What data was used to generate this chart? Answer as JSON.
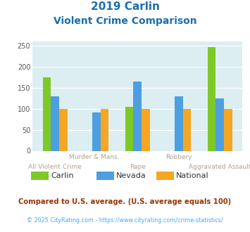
{
  "title_line1": "2019 Carlin",
  "title_line2": "Violent Crime Comparison",
  "categories": [
    "All Violent Crime",
    "Murder & Mans...",
    "Rape",
    "Robbery",
    "Aggravated Assault"
  ],
  "cat_labels_top": [
    "",
    "Murder & Mans...",
    "",
    "Robbery",
    ""
  ],
  "cat_labels_bottom": [
    "All Violent Crime",
    "",
    "Rape",
    "",
    "Aggravated Assault"
  ],
  "series": {
    "Carlin": [
      175,
      0,
      105,
      0,
      248
    ],
    "Nevada": [
      130,
      92,
      165,
      130,
      125
    ],
    "National": [
      100,
      100,
      100,
      100,
      100
    ]
  },
  "colors": {
    "Carlin": "#7ec828",
    "Nevada": "#4d9fe0",
    "National": "#f5a623"
  },
  "ylim": [
    0,
    260
  ],
  "yticks": [
    0,
    50,
    100,
    150,
    200,
    250
  ],
  "plot_bg": "#ddeef2",
  "title_color": "#1a6fad",
  "xlabel_top_color": "#b0a090",
  "xlabel_bottom_color": "#b0a090",
  "footnote1": "Compared to U.S. average. (U.S. average equals 100)",
  "footnote2": "© 2025 CityRating.com - https://www.cityrating.com/crime-statistics/",
  "footnote1_color": "#993300",
  "footnote2_color": "#4da6ff",
  "legend_labels": [
    "Carlin",
    "Nevada",
    "National"
  ],
  "bar_width": 0.2
}
